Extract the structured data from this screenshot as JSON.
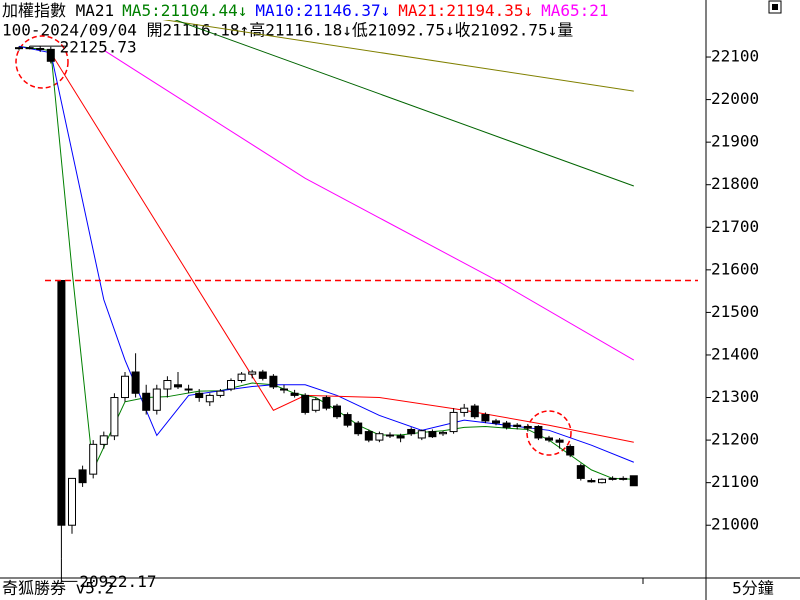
{
  "chart_data": {
    "type": "candlestick",
    "title": "加權指數 MA21",
    "indicators": [
      {
        "text": "MA5:21104.44↓",
        "color": "#008000"
      },
      {
        "text": "MA10:21146.37↓",
        "color": "#0000ff"
      },
      {
        "text": "MA21:21194.35↓",
        "color": "#ff0000"
      },
      {
        "text": "MA65:21",
        "color": "#ff00ff"
      }
    ],
    "info": "100-2024/09/04 開21116.18↑高21116.18↓低21092.75↓收21092.75↓量",
    "footer": "奇狐勝券 v5.2",
    "period": "5分鐘",
    "ylim": [
      20876,
      22187
    ],
    "yticks": [
      21000,
      21100,
      21200,
      21300,
      21400,
      21500,
      21600,
      21700,
      21800,
      21900,
      22000,
      22100
    ],
    "reference_line": 21575,
    "reference_color": "#ff0000",
    "up_color": "#ffffff",
    "down_color": "#000000",
    "open": [
      22120,
      22122,
      22120,
      22118,
      21575,
      21000,
      21130,
      21120,
      21190,
      21210,
      21300,
      21360,
      21310,
      21270,
      21320,
      21330,
      21320,
      21310,
      21290,
      21305,
      21320,
      21340,
      21355,
      21360,
      21350,
      21320,
      21310,
      21305,
      21270,
      21300,
      21280,
      21260,
      21240,
      21220,
      21200,
      21212,
      21210,
      21225,
      21205,
      21220,
      21215,
      21220,
      21265,
      21280,
      21260,
      21245,
      21240,
      21235,
      21232,
      21232,
      21205,
      21200,
      21185,
      21140,
      21105,
      21100,
      21110,
      21110,
      21116.18
    ],
    "high": [
      22125,
      22125.73,
      22125,
      22124,
      21575,
      21110,
      21140,
      21200,
      21220,
      21310,
      21360,
      21404,
      21330,
      21330,
      21350,
      21360,
      21330,
      21320,
      21310,
      21320,
      21345,
      21360,
      21365,
      21365,
      21355,
      21330,
      21318,
      21310,
      21300,
      21305,
      21285,
      21265,
      21245,
      21225,
      21220,
      21218,
      21215,
      21230,
      21225,
      21225,
      21222,
      21275,
      21285,
      21285,
      21265,
      21250,
      21245,
      21240,
      21238,
      21235,
      21210,
      21205,
      21190,
      21145,
      21110,
      21110,
      21115,
      21115,
      21116.18
    ],
    "low": [
      22115,
      22118,
      22112,
      22085,
      20922.17,
      20980,
      21090,
      21110,
      21180,
      21200,
      21290,
      21300,
      21260,
      21260,
      21300,
      21320,
      21310,
      21290,
      21280,
      21300,
      21315,
      21335,
      21345,
      21340,
      21320,
      21310,
      21300,
      21260,
      21265,
      21270,
      21250,
      21230,
      21210,
      21195,
      21195,
      21205,
      21195,
      21210,
      21200,
      21205,
      21210,
      21215,
      21255,
      21250,
      21240,
      21235,
      21225,
      21225,
      21220,
      21200,
      21195,
      21180,
      21160,
      21105,
      21100,
      21098,
      21105,
      21105,
      21092.75
    ],
    "close": [
      22122,
      22120,
      22118,
      22090,
      21000,
      21110,
      21100,
      21190,
      21210,
      21300,
      21350,
      21310,
      21270,
      21320,
      21340,
      21325,
      21318,
      21300,
      21305,
      21315,
      21340,
      21355,
      21360,
      21345,
      21325,
      21318,
      21305,
      21265,
      21295,
      21275,
      21255,
      21235,
      21215,
      21200,
      21215,
      21210,
      21205,
      21215,
      21222,
      21208,
      21218,
      21265,
      21275,
      21255,
      21245,
      21240,
      21230,
      21232,
      21228,
      21205,
      21200,
      21195,
      21165,
      21110,
      21102,
      21108,
      21108,
      21110,
      21092.75
    ],
    "series": [
      {
        "color": "#008000",
        "x": [
          0,
          3,
          5,
          7,
          10,
          12,
          14,
          17,
          19,
          22,
          24,
          26,
          28,
          30,
          32,
          34,
          36,
          38,
          40,
          42,
          44,
          46,
          48,
          50,
          52,
          54,
          56,
          58
        ],
        "values": [
          22125,
          22115,
          21600,
          21130,
          21290,
          21300,
          21302,
          21315,
          21316,
          21334,
          21330,
          21310,
          21300,
          21270,
          21235,
          21212,
          21212,
          21218,
          21222,
          21230,
          21232,
          21228,
          21225,
          21200,
          21165,
          21130,
          21110,
          21108
        ]
      },
      {
        "color": "#0000ff",
        "x": [
          0,
          3,
          8,
          10,
          13,
          16,
          19,
          22,
          24,
          27,
          30,
          34,
          38,
          42,
          46,
          50,
          54,
          58
        ],
        "values": [
          22125,
          22110,
          21530,
          21388,
          21211,
          21305,
          21316,
          21326,
          21330,
          21330,
          21305,
          21258,
          21223,
          21247,
          21235,
          21223,
          21188,
          21148
        ]
      },
      {
        "color": "#ff0000",
        "x": [
          3,
          24,
          27,
          34,
          42,
          50,
          58
        ],
        "values": [
          22110,
          21270,
          21305,
          21300,
          21270,
          21235,
          21195
        ]
      },
      {
        "color": "#ff00ff",
        "x": [
          8,
          27,
          45,
          58
        ],
        "values": [
          22116,
          21815,
          21576,
          21388
        ]
      },
      {
        "color": "#808000",
        "x": [
          12,
          58
        ],
        "values": [
          22194,
          22020
        ]
      },
      {
        "color": "#006400",
        "x": [
          14,
          58
        ],
        "values": [
          22194,
          21797
        ]
      }
    ],
    "annotations": [
      {
        "label": "22125.73",
        "value": 22125.73,
        "index": 1
      },
      {
        "label": "20922.17",
        "value": 20922.17,
        "index": 4
      }
    ]
  }
}
